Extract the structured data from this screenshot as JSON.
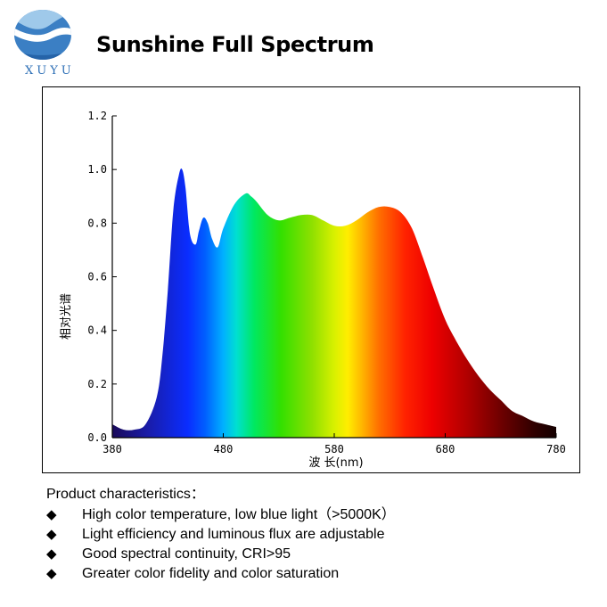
{
  "brand": {
    "name": "XUYU",
    "color": "#2a6db5"
  },
  "header": {
    "title": "Sunshine Full Spectrum"
  },
  "chart_data": {
    "type": "area",
    "title": "",
    "xlabel": "波 长(nm)",
    "ylabel": "相对光谱",
    "xlim": [
      380,
      780
    ],
    "ylim": [
      0,
      1.2
    ],
    "xticks": [
      "380",
      "480",
      "580",
      "680",
      "780"
    ],
    "yticks": [
      "0.0",
      "0.2",
      "0.4",
      "0.6",
      "0.8",
      "1.0",
      "1.2"
    ],
    "fill": "visible-spectrum gradient",
    "x": [
      380,
      390,
      400,
      410,
      420,
      425,
      430,
      435,
      440,
      443,
      446,
      450,
      455,
      458,
      462,
      466,
      470,
      475,
      480,
      490,
      500,
      505,
      510,
      520,
      530,
      540,
      550,
      560,
      570,
      580,
      590,
      600,
      610,
      620,
      630,
      640,
      650,
      660,
      670,
      680,
      690,
      700,
      710,
      720,
      730,
      740,
      750,
      760,
      770,
      780
    ],
    "y": [
      0.05,
      0.03,
      0.03,
      0.05,
      0.15,
      0.3,
      0.55,
      0.85,
      0.98,
      1.0,
      0.93,
      0.76,
      0.72,
      0.77,
      0.82,
      0.8,
      0.74,
      0.71,
      0.78,
      0.87,
      0.91,
      0.9,
      0.88,
      0.83,
      0.81,
      0.82,
      0.83,
      0.83,
      0.81,
      0.79,
      0.79,
      0.81,
      0.84,
      0.86,
      0.86,
      0.84,
      0.78,
      0.67,
      0.55,
      0.44,
      0.36,
      0.29,
      0.23,
      0.18,
      0.14,
      0.1,
      0.08,
      0.06,
      0.05,
      0.04
    ]
  },
  "product": {
    "heading": "Product characteristics：",
    "bullet_icon": "diamond-icon",
    "items": [
      {
        "text": "High color temperature, low blue light（>5000K）"
      },
      {
        "text": "Light efficiency and luminous flux are adjustable"
      },
      {
        "text": "Good spectral continuity, CRI>95"
      },
      {
        "text": "Greater color fidelity and color saturation"
      }
    ]
  }
}
